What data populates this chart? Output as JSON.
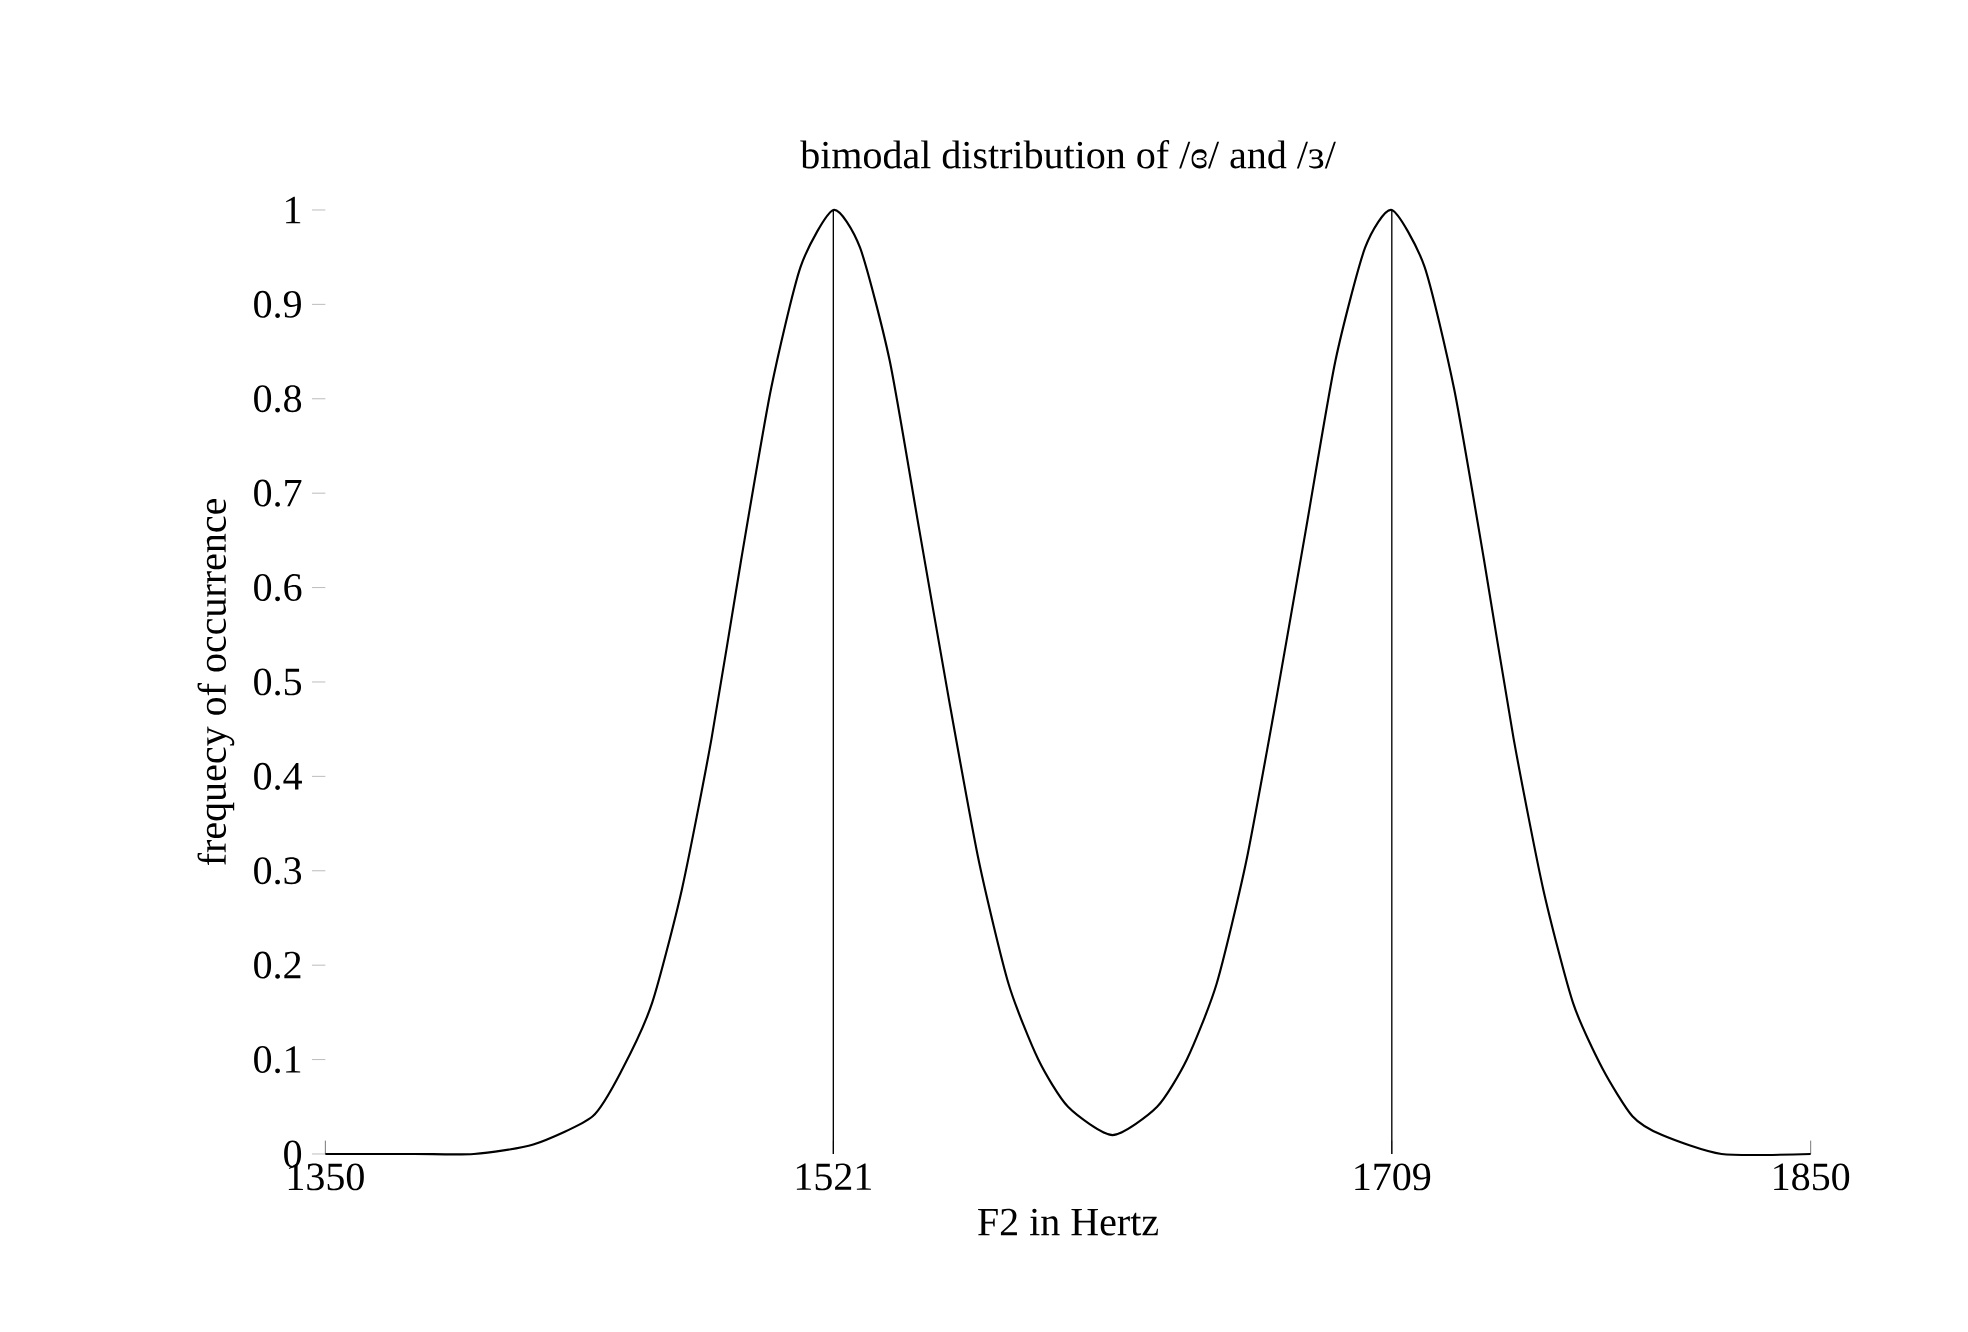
{
  "chart_data": {
    "type": "line",
    "title": "bimodal distribution of /ɞ/ and /ɜ/",
    "xlabel": "F2 in Hertz",
    "ylabel": "frequecy of occurrence",
    "xlim": [
      1350,
      1850
    ],
    "ylim": [
      0,
      1
    ],
    "xticks": [
      1350,
      1521,
      1709,
      1850
    ],
    "yticks": [
      0,
      0.1,
      0.2,
      0.3,
      0.4,
      0.5,
      0.6,
      0.7,
      0.8,
      0.9,
      1
    ],
    "ref_lines": [
      {
        "axis": "x",
        "value": 1521,
        "color": "#000000"
      },
      {
        "axis": "x",
        "value": 1709,
        "color": "#000000"
      }
    ],
    "series": [
      {
        "color": "#000000",
        "x": [
          1350,
          1380,
          1400,
          1420,
          1440,
          1450,
          1460,
          1470,
          1480,
          1490,
          1500,
          1510,
          1521,
          1530,
          1540,
          1550,
          1560,
          1570,
          1580,
          1590,
          1600,
          1615,
          1630,
          1640,
          1650,
          1660,
          1670,
          1680,
          1690,
          1700,
          1709,
          1720,
          1730,
          1740,
          1750,
          1760,
          1770,
          1780,
          1790,
          1800,
          1820,
          1850
        ],
        "values": [
          0,
          0,
          0,
          0.01,
          0.04,
          0.09,
          0.16,
          0.28,
          0.44,
          0.63,
          0.81,
          0.94,
          1,
          0.96,
          0.84,
          0.66,
          0.48,
          0.31,
          0.18,
          0.1,
          0.05,
          0.02,
          0.05,
          0.1,
          0.18,
          0.31,
          0.48,
          0.66,
          0.84,
          0.96,
          1,
          0.94,
          0.81,
          0.63,
          0.44,
          0.28,
          0.16,
          0.09,
          0.04,
          0.02,
          0,
          0
        ]
      }
    ]
  }
}
